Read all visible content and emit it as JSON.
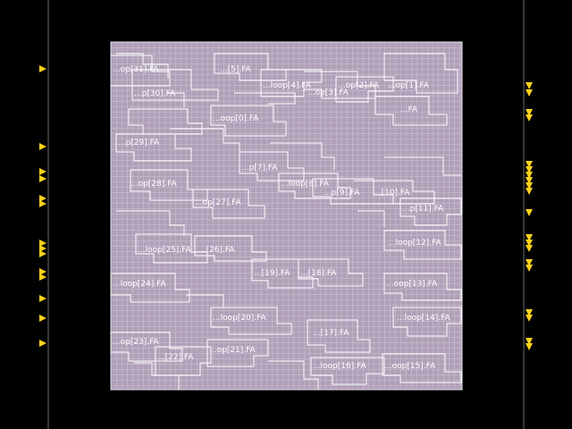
{
  "colors": {
    "background": "#000000",
    "die_fill": "#b0a0b8",
    "grid_line": "#cfc4d6",
    "cell_outline": "#ffffff",
    "pin": "#ffd21a",
    "text": "#ffffff"
  },
  "layout": {
    "cells": [
      {
        "label": "...op[31].FA"
      },
      {
        "label": "...[5].FA"
      },
      {
        "label": "...loop[4].FA"
      },
      {
        "label": "...op[3].FA"
      },
      {
        "label": "...op[2].FA"
      },
      {
        "label": "...op[1].FA"
      },
      {
        "label": "...p[30].FA"
      },
      {
        "label": "...FA"
      },
      {
        "label": "...oop[0].FA"
      },
      {
        "label": "...p[29].FA"
      },
      {
        "label": "...p[7].FA"
      },
      {
        "label": "...op[28].FA"
      },
      {
        "label": "...loop[8].FA"
      },
      {
        "label": "...p[9].FA"
      },
      {
        "label": "...[10].FA"
      },
      {
        "label": "...op[27].FA"
      },
      {
        "label": "...p[11].FA"
      },
      {
        "label": "...loop[25].FA"
      },
      {
        "label": "...[26].FA"
      },
      {
        "label": "...loop[12].FA"
      },
      {
        "label": "...[19].FA"
      },
      {
        "label": "...[18].FA"
      },
      {
        "label": "...loop[24].FA"
      },
      {
        "label": "...oop[13].FA"
      },
      {
        "label": "...loop[20].FA"
      },
      {
        "label": "...loop[14].FA"
      },
      {
        "label": "...op[23].FA"
      },
      {
        "label": "...op[21].FA"
      },
      {
        "label": "...[17].FA"
      },
      {
        "label": "...[22].FA"
      },
      {
        "label": "...loop[16].FA"
      },
      {
        "label": "...oop[15].FA"
      }
    ]
  }
}
